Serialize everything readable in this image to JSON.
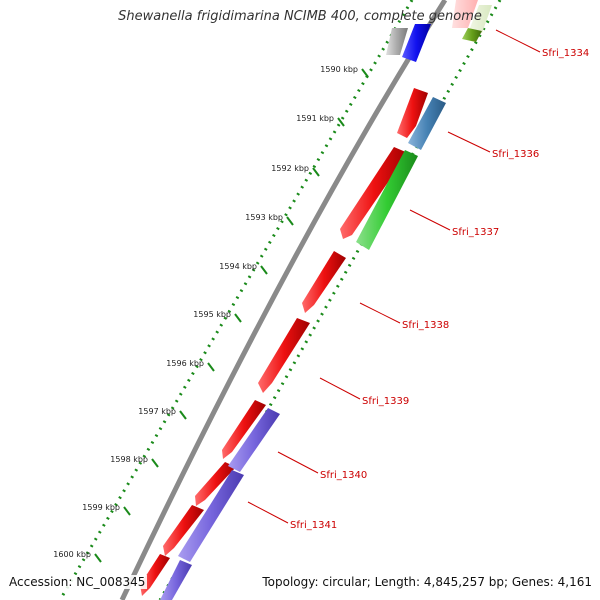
{
  "title": "Shewanella frigidimarina NCIMB 400, complete genome",
  "footer": {
    "accession": "Accession: NC_008345",
    "topology": "Topology: circular; Length: 4,845,257 bp; Genes: 4,161"
  },
  "colors": {
    "backbone": "#8a8a8a",
    "tick": "#1a8a1a",
    "gene_red": "#ee1111",
    "gene_green": "#33cc33",
    "gene_blue": "#4682b4",
    "gene_purple": "#7766dd",
    "gene_navy": "#1111ee",
    "gene_olive": "#66a01a",
    "gene_grey": "#aaaaaa",
    "label": "#cc0000"
  },
  "scale_labels": [
    "1590 kbp",
    "1591 kbp",
    "1592 kbp",
    "1593 kbp",
    "1594 kbp",
    "1595 kbp",
    "1596 kbp",
    "1597 kbp",
    "1598 kbp",
    "1599 kbp",
    "1600 kbp"
  ],
  "gene_labels": [
    "Sfri_1334",
    "Sfri_1336",
    "Sfri_1337",
    "Sfri_1338",
    "Sfri_1339",
    "Sfri_1340",
    "Sfri_1341"
  ]
}
